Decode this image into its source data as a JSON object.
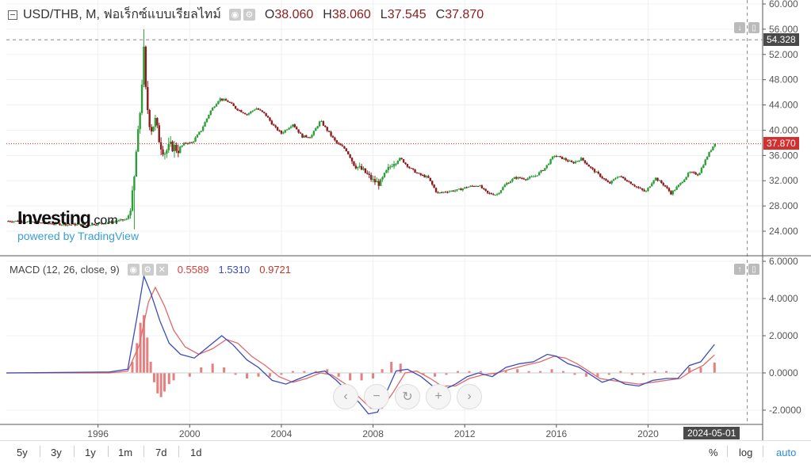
{
  "header": {
    "symbol": "USD/THB, M, ฟอเร็กซ์แบบเรียลไทม์",
    "ohlc": [
      {
        "k": "O",
        "v": "38.060"
      },
      {
        "k": "H",
        "v": "38.060"
      },
      {
        "k": "L",
        "v": "37.545"
      },
      {
        "k": "C",
        "v": "37.870"
      }
    ]
  },
  "macd_legend": {
    "label": "MACD (12, 26, close, 9)",
    "hist": "0.5589",
    "macd": "1.5310",
    "signal": "0.9721"
  },
  "price_axis": [
    "60.000",
    "56.000",
    "52.000",
    "48.000",
    "44.000",
    "40.000",
    "36.000",
    "32.000",
    "28.000",
    "24.000"
  ],
  "macd_axis": [
    "6.0000",
    "4.0000",
    "2.0000",
    "0.0000",
    "-2.0000"
  ],
  "time_axis": [
    "1996",
    "2000",
    "2004",
    "2008",
    "2012",
    "2016",
    "2020"
  ],
  "crosshair_price": "54.328",
  "last_price": "37.870",
  "crosshair_date": "2024-05-01",
  "brand": {
    "name": "Investing",
    "suffix": ".com",
    "powered": "powered by TradingView"
  },
  "timeframes": [
    "5y",
    "3y",
    "1y",
    "1m",
    "7d",
    "1d"
  ],
  "bottom_right": {
    "percent": "%",
    "log": "log",
    "auto": "auto"
  },
  "colors": {
    "up": "#2e9e3a",
    "down": "#8b1d1d",
    "macd": "#3b4cb8",
    "signal": "#e06a6a",
    "hist": "#e06a6a",
    "last_price": "#d32f2f"
  },
  "chart_data": [
    {
      "type": "candlestick",
      "title": "USD/THB, M",
      "ylim": [
        22,
        61
      ],
      "xlim": [
        1992.0,
        2025.0
      ],
      "series": [
        {
          "name": "USD/THB",
          "points": [
            [
              1992.5,
              25.6
            ],
            [
              1993.5,
              25.3
            ],
            [
              1994.5,
              25.1
            ],
            [
              1995.5,
              25.0
            ],
            [
              1996.5,
              25.4
            ],
            [
              1997.3,
              25.9
            ],
            [
              1997.55,
              30.5
            ],
            [
              1997.65,
              36.0
            ],
            [
              1997.8,
              41.0
            ],
            [
              1998.0,
              52.5
            ],
            [
              1998.1,
              45.0
            ],
            [
              1998.3,
              40.0
            ],
            [
              1998.5,
              41.5
            ],
            [
              1998.7,
              38.0
            ],
            [
              1998.9,
              36.5
            ],
            [
              1999.2,
              37.5
            ],
            [
              1999.5,
              37.0
            ],
            [
              1999.8,
              38.0
            ],
            [
              2000.1,
              38.0
            ],
            [
              2000.5,
              40.0
            ],
            [
              2000.9,
              43.0
            ],
            [
              2001.3,
              45.0
            ],
            [
              2001.7,
              44.5
            ],
            [
              2002.0,
              43.5
            ],
            [
              2002.5,
              42.5
            ],
            [
              2002.9,
              43.5
            ],
            [
              2003.3,
              42.5
            ],
            [
              2003.7,
              40.5
            ],
            [
              2004.0,
              39.5
            ],
            [
              2004.5,
              41.0
            ],
            [
              2004.9,
              39.0
            ],
            [
              2005.3,
              39.0
            ],
            [
              2005.7,
              41.5
            ],
            [
              2006.0,
              40.0
            ],
            [
              2006.4,
              38.0
            ],
            [
              2006.8,
              37.0
            ],
            [
              2007.2,
              34.5
            ],
            [
              2007.6,
              33.5
            ],
            [
              2008.0,
              32.0
            ],
            [
              2008.3,
              31.5
            ],
            [
              2008.6,
              33.5
            ],
            [
              2008.9,
              35.0
            ],
            [
              2009.2,
              35.5
            ],
            [
              2009.6,
              34.0
            ],
            [
              2010.0,
              33.0
            ],
            [
              2010.4,
              32.5
            ],
            [
              2010.8,
              30.0
            ],
            [
              2011.2,
              30.3
            ],
            [
              2011.7,
              30.5
            ],
            [
              2012.1,
              31.0
            ],
            [
              2012.6,
              31.3
            ],
            [
              2013.0,
              30.0
            ],
            [
              2013.4,
              29.8
            ],
            [
              2013.8,
              31.5
            ],
            [
              2014.2,
              32.5
            ],
            [
              2014.7,
              32.3
            ],
            [
              2015.1,
              32.8
            ],
            [
              2015.5,
              34.0
            ],
            [
              2015.9,
              36.0
            ],
            [
              2016.3,
              35.5
            ],
            [
              2016.7,
              34.8
            ],
            [
              2017.1,
              35.5
            ],
            [
              2017.5,
              34.0
            ],
            [
              2017.9,
              32.8
            ],
            [
              2018.3,
              31.5
            ],
            [
              2018.7,
              32.8
            ],
            [
              2019.1,
              32.0
            ],
            [
              2019.5,
              31.0
            ],
            [
              2019.9,
              30.2
            ],
            [
              2020.3,
              32.5
            ],
            [
              2020.7,
              31.3
            ],
            [
              2021.0,
              30.0
            ],
            [
              2021.4,
              31.5
            ],
            [
              2021.8,
              33.3
            ],
            [
              2022.2,
              33.0
            ],
            [
              2022.6,
              36.0
            ],
            [
              2022.9,
              37.87
            ]
          ]
        }
      ]
    },
    {
      "type": "line",
      "title": "MACD (12, 26, close, 9)",
      "ylim": [
        -2.3,
        6.2
      ],
      "series": [
        {
          "name": "MACD",
          "points": [
            [
              1992.0,
              0.0
            ],
            [
              1996.5,
              0.05
            ],
            [
              1997.3,
              0.2
            ],
            [
              1997.7,
              3.0
            ],
            [
              1998.0,
              5.2
            ],
            [
              1998.3,
              4.3
            ],
            [
              1998.7,
              2.8
            ],
            [
              1999.1,
              1.6
            ],
            [
              1999.6,
              1.0
            ],
            [
              2000.2,
              0.8
            ],
            [
              2000.8,
              1.4
            ],
            [
              2001.4,
              2.0
            ],
            [
              2001.9,
              1.5
            ],
            [
              2002.5,
              0.7
            ],
            [
              2003.0,
              0.3
            ],
            [
              2003.6,
              -0.4
            ],
            [
              2004.2,
              -0.6
            ],
            [
              2004.8,
              -0.3
            ],
            [
              2005.4,
              0.0
            ],
            [
              2005.9,
              0.1
            ],
            [
              2006.4,
              -0.4
            ],
            [
              2006.9,
              -1.0
            ],
            [
              2007.4,
              -1.6
            ],
            [
              2007.8,
              -2.2
            ],
            [
              2008.2,
              -2.1
            ],
            [
              2008.6,
              -1.0
            ],
            [
              2009.0,
              0.1
            ],
            [
              2009.5,
              0.2
            ],
            [
              2010.1,
              -0.2
            ],
            [
              2010.6,
              -0.7
            ],
            [
              2011.1,
              -0.9
            ],
            [
              2011.6,
              -0.6
            ],
            [
              2012.1,
              -0.2
            ],
            [
              2012.6,
              0.0
            ],
            [
              2013.2,
              -0.2
            ],
            [
              2013.8,
              0.3
            ],
            [
              2014.4,
              0.5
            ],
            [
              2015.0,
              0.6
            ],
            [
              2015.6,
              1.0
            ],
            [
              2016.0,
              0.9
            ],
            [
              2016.5,
              0.5
            ],
            [
              2017.0,
              0.3
            ],
            [
              2017.5,
              -0.1
            ],
            [
              2018.0,
              -0.5
            ],
            [
              2018.5,
              -0.3
            ],
            [
              2019.0,
              -0.6
            ],
            [
              2019.6,
              -0.7
            ],
            [
              2020.2,
              -0.4
            ],
            [
              2020.8,
              -0.3
            ],
            [
              2021.3,
              -0.3
            ],
            [
              2021.8,
              0.4
            ],
            [
              2022.3,
              0.6
            ],
            [
              2022.9,
              1.531
            ]
          ]
        },
        {
          "name": "Signal",
          "points": [
            [
              1992.0,
              0.0
            ],
            [
              1996.5,
              0.0
            ],
            [
              1997.3,
              0.1
            ],
            [
              1997.8,
              1.5
            ],
            [
              1998.2,
              3.8
            ],
            [
              1998.5,
              4.6
            ],
            [
              1998.9,
              3.6
            ],
            [
              1999.3,
              2.3
            ],
            [
              1999.8,
              1.4
            ],
            [
              2000.4,
              1.0
            ],
            [
              2001.0,
              1.3
            ],
            [
              2001.6,
              1.8
            ],
            [
              2002.1,
              1.6
            ],
            [
              2002.7,
              0.9
            ],
            [
              2003.3,
              0.4
            ],
            [
              2003.9,
              -0.2
            ],
            [
              2004.5,
              -0.5
            ],
            [
              2005.1,
              -0.3
            ],
            [
              2005.7,
              0.0
            ],
            [
              2006.2,
              -0.1
            ],
            [
              2006.8,
              -0.6
            ],
            [
              2007.3,
              -1.2
            ],
            [
              2007.9,
              -1.9
            ],
            [
              2008.4,
              -1.9
            ],
            [
              2008.9,
              -1.0
            ],
            [
              2009.4,
              0.0
            ],
            [
              2009.9,
              0.1
            ],
            [
              2010.5,
              -0.3
            ],
            [
              2011.0,
              -0.7
            ],
            [
              2011.6,
              -0.7
            ],
            [
              2012.2,
              -0.3
            ],
            [
              2012.8,
              -0.1
            ],
            [
              2013.4,
              0.0
            ],
            [
              2014.0,
              0.2
            ],
            [
              2014.6,
              0.4
            ],
            [
              2015.3,
              0.6
            ],
            [
              2015.9,
              0.9
            ],
            [
              2016.4,
              0.8
            ],
            [
              2016.9,
              0.5
            ],
            [
              2017.4,
              0.1
            ],
            [
              2017.9,
              -0.3
            ],
            [
              2018.4,
              -0.4
            ],
            [
              2019.0,
              -0.5
            ],
            [
              2019.6,
              -0.6
            ],
            [
              2020.2,
              -0.5
            ],
            [
              2020.8,
              -0.4
            ],
            [
              2021.4,
              -0.3
            ],
            [
              2021.9,
              0.1
            ],
            [
              2022.4,
              0.4
            ],
            [
              2022.9,
              0.972
            ]
          ]
        }
      ],
      "histogram": [
        [
          1997.5,
          0.6
        ],
        [
          1997.7,
          1.6
        ],
        [
          1997.85,
          2.7
        ],
        [
          1998.0,
          3.1
        ],
        [
          1998.15,
          1.9
        ],
        [
          1998.3,
          0.6
        ],
        [
          1998.45,
          -0.5
        ],
        [
          1998.6,
          -1.1
        ],
        [
          1998.75,
          -1.3
        ],
        [
          1998.9,
          -1.0
        ],
        [
          1999.1,
          -0.6
        ],
        [
          1999.3,
          -0.4
        ],
        [
          2000.0,
          -0.2
        ],
        [
          2000.5,
          0.3
        ],
        [
          2001.0,
          0.5
        ],
        [
          2001.5,
          0.3
        ],
        [
          2002.0,
          -0.1
        ],
        [
          2002.5,
          -0.3
        ],
        [
          2003.0,
          -0.2
        ],
        [
          2003.5,
          -0.2
        ],
        [
          2004.0,
          -0.1
        ],
        [
          2004.5,
          0.1
        ],
        [
          2005.0,
          0.1
        ],
        [
          2005.5,
          0.1
        ],
        [
          2006.0,
          0.2
        ],
        [
          2006.5,
          -0.2
        ],
        [
          2007.0,
          -0.4
        ],
        [
          2007.5,
          -0.4
        ],
        [
          2008.0,
          -0.3
        ],
        [
          2008.4,
          0.2
        ],
        [
          2008.8,
          0.6
        ],
        [
          2009.2,
          0.5
        ],
        [
          2009.7,
          0.1
        ],
        [
          2010.2,
          -0.1
        ],
        [
          2010.7,
          -0.2
        ],
        [
          2011.2,
          -0.1
        ],
        [
          2011.7,
          0.1
        ],
        [
          2012.2,
          0.1
        ],
        [
          2012.7,
          0.1
        ],
        [
          2013.3,
          -0.1
        ],
        [
          2013.8,
          0.1
        ],
        [
          2014.3,
          0.2
        ],
        [
          2014.8,
          0.1
        ],
        [
          2015.3,
          0.1
        ],
        [
          2015.8,
          0.2
        ],
        [
          2016.3,
          0.1
        ],
        [
          2016.8,
          -0.1
        ],
        [
          2017.3,
          -0.2
        ],
        [
          2017.8,
          -0.2
        ],
        [
          2018.3,
          -0.1
        ],
        [
          2018.8,
          0.1
        ],
        [
          2019.3,
          -0.1
        ],
        [
          2019.8,
          -0.1
        ],
        [
          2020.3,
          0.1
        ],
        [
          2020.8,
          0.1
        ],
        [
          2021.3,
          0.0
        ],
        [
          2021.8,
          0.3
        ],
        [
          2022.3,
          0.3
        ],
        [
          2022.9,
          0.559
        ]
      ]
    }
  ]
}
